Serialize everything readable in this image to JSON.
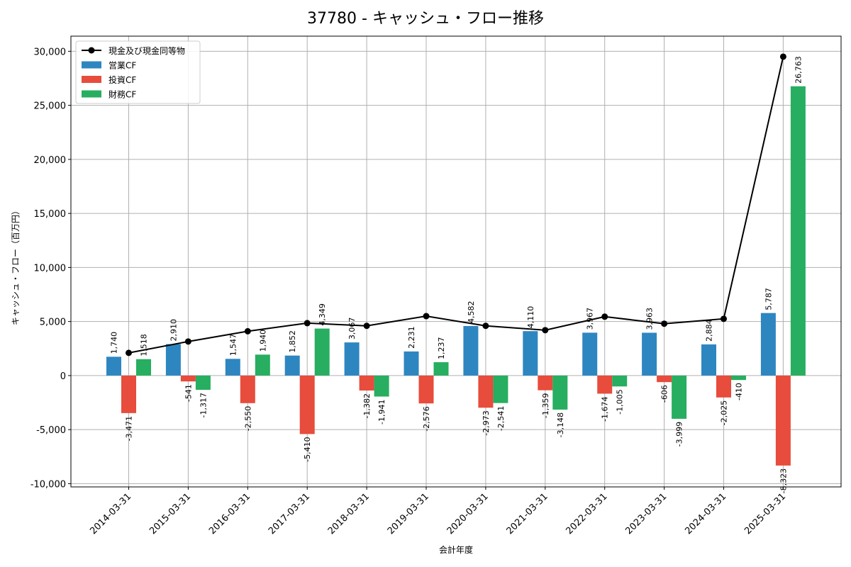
{
  "chart_data": {
    "type": "bar",
    "title": "37780 - キャッシュ・フロー推移",
    "xlabel": "会計年度",
    "ylabel": "キャッシュ・フロー（百万円）",
    "ylim": [
      -10300,
      31400
    ],
    "yticks": [
      -10000,
      -5000,
      0,
      5000,
      10000,
      15000,
      20000,
      25000,
      30000
    ],
    "ytick_labels": [
      "-10,000",
      "-5,000",
      "0",
      "5,000",
      "10,000",
      "15,000",
      "20,000",
      "25,000",
      "30,000"
    ],
    "grid": true,
    "legend_position": "top-left",
    "categories": [
      "2014-03-31",
      "2015-03-31",
      "2016-03-31",
      "2017-03-31",
      "2018-03-31",
      "2019-03-31",
      "2020-03-31",
      "2021-03-31",
      "2022-03-31",
      "2023-03-31",
      "2024-03-31",
      "2025-03-31"
    ],
    "series": [
      {
        "name": "営業CF",
        "kind": "bar",
        "color": "#2e86c1",
        "values": [
          1740,
          2910,
          1547,
          1852,
          3067,
          2231,
          4582,
          4110,
          3967,
          3963,
          2884,
          5787
        ],
        "labels": [
          "1,740",
          "2,910",
          "1,547",
          "1,852",
          "3,067",
          "2,231",
          "4,582",
          "4,110",
          "3,967",
          "3,963",
          "2,884",
          "5,787"
        ]
      },
      {
        "name": "投資CF",
        "kind": "bar",
        "color": "#e74c3c",
        "values": [
          -3471,
          -541,
          -2550,
          -5410,
          -1382,
          -2576,
          -2973,
          -1359,
          -1674,
          -606,
          -2025,
          -8323
        ],
        "labels": [
          "-3,471",
          "-541",
          "-2,550",
          "-5,410",
          "-1,382",
          "-2,576",
          "-2,973",
          "-1,359",
          "-1,674",
          "-606",
          "-2,025",
          "-8,323"
        ]
      },
      {
        "name": "財務CF",
        "kind": "bar",
        "color": "#27ae60",
        "values": [
          1518,
          -1317,
          1940,
          4349,
          -1941,
          1237,
          -2541,
          -3148,
          -1005,
          -3999,
          -410,
          26763
        ],
        "labels": [
          "1,518",
          "-1,317",
          "1,940",
          "4,349",
          "-1,941",
          "1,237",
          "-2,541",
          "-3,148",
          "-1,005",
          "-3,999",
          "-410",
          "26,763"
        ]
      },
      {
        "name": "現金及び現金同等物",
        "kind": "line",
        "color": "#000000",
        "values": [
          2100,
          3150,
          4100,
          4850,
          4600,
          5500,
          4600,
          4200,
          5450,
          4800,
          5250,
          29500
        ]
      }
    ]
  }
}
